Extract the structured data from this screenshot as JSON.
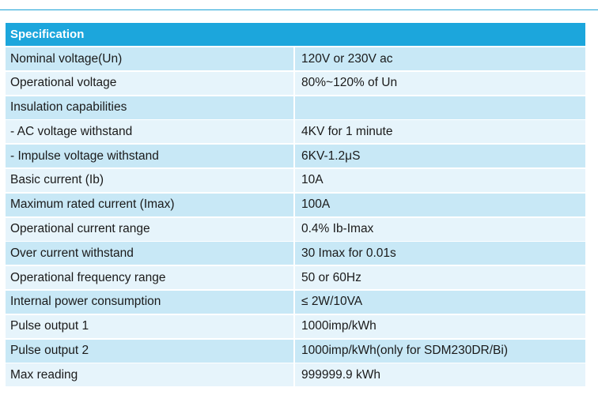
{
  "header": {
    "title": "Specification"
  },
  "rows": [
    {
      "label": "Nominal voltage(Un)",
      "value": "120V or 230V ac"
    },
    {
      "label": "Operational voltage",
      "value": "80%~120% of Un"
    },
    {
      "label": "Insulation capabilities",
      "value": ""
    },
    {
      "label": "- AC voltage withstand",
      "value": "4KV for 1 minute"
    },
    {
      "label": "- Impulse voltage withstand",
      "value": "6KV-1.2μS"
    },
    {
      "label": "Basic current (Ib)",
      "value": "10A"
    },
    {
      "label": "Maximum rated current (Imax)",
      "value": "100A"
    },
    {
      "label": "Operational current range",
      "value": "0.4% Ib-Imax"
    },
    {
      "label": "Over current withstand",
      "value": "30 Imax for 0.01s"
    },
    {
      "label": "Operational frequency range",
      "value": "50 or 60Hz"
    },
    {
      "label": "Internal power consumption",
      "value": "≤ 2W/10VA"
    },
    {
      "label": "Pulse output 1",
      "value": "1000imp/kWh"
    },
    {
      "label": "Pulse output 2",
      "value": "1000imp/kWh(only for SDM230DR/Bi)"
    },
    {
      "label": "Max reading",
      "value": "999999.9 kWh"
    }
  ],
  "colors": {
    "header_bg": "#1ca6dc",
    "row_odd": "#c8e8f6",
    "row_even": "#e6f4fb",
    "rule": "#1aa1d6"
  }
}
